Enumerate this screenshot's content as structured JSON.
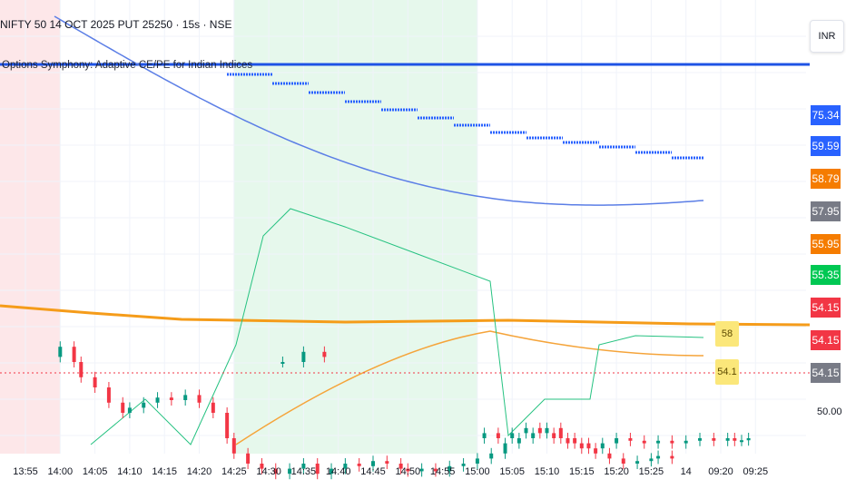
{
  "header": {
    "title": "NIFTY 50 14 OCT 2025 PUT 25250 · 15s · NSE",
    "subtitle": "Options Symphony: Adaptive CE/PE for Indian Indices"
  },
  "toolbar": {
    "currency": "INR"
  },
  "chart_data": {
    "type": "line",
    "x_tick_labels": [
      "13:55",
      "14:00",
      "14:05",
      "14:10",
      "14:15",
      "14:20",
      "14:25",
      "14:30",
      "14:35",
      "14:40",
      "14:45",
      "14:50",
      "14:55",
      "15:00",
      "15:05",
      "15:10",
      "15:15",
      "15:20",
      "15:25",
      "14",
      "09:20",
      "09:25"
    ],
    "y_tick_labels": [
      "50.00"
    ],
    "price_tags": [
      {
        "label": "75.34",
        "color": "#2962ff"
      },
      {
        "label": "59.59",
        "color": "#2962ff"
      },
      {
        "label": "58.79",
        "color": "#f57c00"
      },
      {
        "label": "57.95",
        "color": "#787b86"
      },
      {
        "label": "55.95",
        "color": "#f57c00"
      },
      {
        "label": "55.35",
        "color": "#00c853"
      },
      {
        "label": "54.15",
        "color": "#f23645"
      },
      {
        "label": "54.15",
        "color": "#f23645"
      },
      {
        "label": "54.15",
        "color": "#787b86"
      }
    ],
    "highlight_labels": [
      "58",
      "54.1"
    ],
    "sessions": [
      {
        "from": "13:50",
        "to": "14:00",
        "color": "#fde7e9"
      },
      {
        "from": "14:25",
        "to": "15:00",
        "color": "#e6f8ec"
      }
    ],
    "series": [
      {
        "kind": "candles",
        "points": [
          [
            13.92,
            60
          ],
          [
            13.95,
            62
          ],
          [
            13.98,
            61
          ],
          [
            14.0,
            63
          ],
          [
            14.02,
            60
          ],
          [
            14.03,
            57
          ],
          [
            14.05,
            55
          ],
          [
            14.07,
            52
          ],
          [
            14.09,
            50
          ],
          [
            14.1,
            51
          ],
          [
            14.12,
            52
          ],
          [
            14.14,
            53
          ],
          [
            14.16,
            52.5
          ],
          [
            14.18,
            53.5
          ],
          [
            14.2,
            52
          ],
          [
            14.22,
            50
          ],
          [
            14.24,
            45
          ],
          [
            14.25,
            42
          ],
          [
            14.27,
            40
          ],
          [
            14.29,
            39
          ],
          [
            14.31,
            38
          ],
          [
            14.33,
            39
          ],
          [
            14.35,
            40
          ],
          [
            14.37,
            38
          ],
          [
            14.39,
            39
          ],
          [
            14.41,
            40
          ],
          [
            14.43,
            39.5
          ],
          [
            14.45,
            40.5
          ],
          [
            14.47,
            40
          ],
          [
            14.49,
            39
          ],
          [
            14.5,
            38.5
          ],
          [
            14.52,
            39
          ],
          [
            14.54,
            38.5
          ],
          [
            14.56,
            39.5
          ],
          [
            14.58,
            40
          ],
          [
            14.6,
            41
          ],
          [
            14.62,
            42
          ],
          [
            14.64,
            44
          ],
          [
            14.66,
            45
          ],
          [
            14.68,
            46
          ],
          [
            14.7,
            47
          ],
          [
            14.72,
            45
          ],
          [
            14.74,
            44
          ],
          [
            14.76,
            43
          ],
          [
            14.78,
            44
          ],
          [
            14.8,
            45
          ],
          [
            14.82,
            44.5
          ],
          [
            14.84,
            44
          ],
          [
            14.86,
            44.5
          ],
          [
            14.88,
            44
          ],
          [
            14.9,
            44.5
          ],
          [
            14.92,
            45
          ],
          [
            14.94,
            44.5
          ],
          [
            14.96,
            45
          ],
          [
            14.97,
            44.5
          ],
          [
            14.98,
            44.6
          ],
          [
            14.99,
            45
          ],
          [
            15.01,
            46
          ],
          [
            15.03,
            45
          ],
          [
            15.05,
            46
          ],
          [
            15.07,
            47
          ],
          [
            15.09,
            46
          ],
          [
            15.11,
            45
          ],
          [
            15.13,
            44
          ],
          [
            15.15,
            43
          ],
          [
            15.17,
            42
          ],
          [
            15.19,
            41
          ],
          [
            15.21,
            40
          ],
          [
            15.23,
            40.5
          ],
          [
            15.25,
            41
          ],
          [
            15.26,
            41.5
          ],
          [
            15.28,
            41
          ]
        ]
      }
    ]
  }
}
